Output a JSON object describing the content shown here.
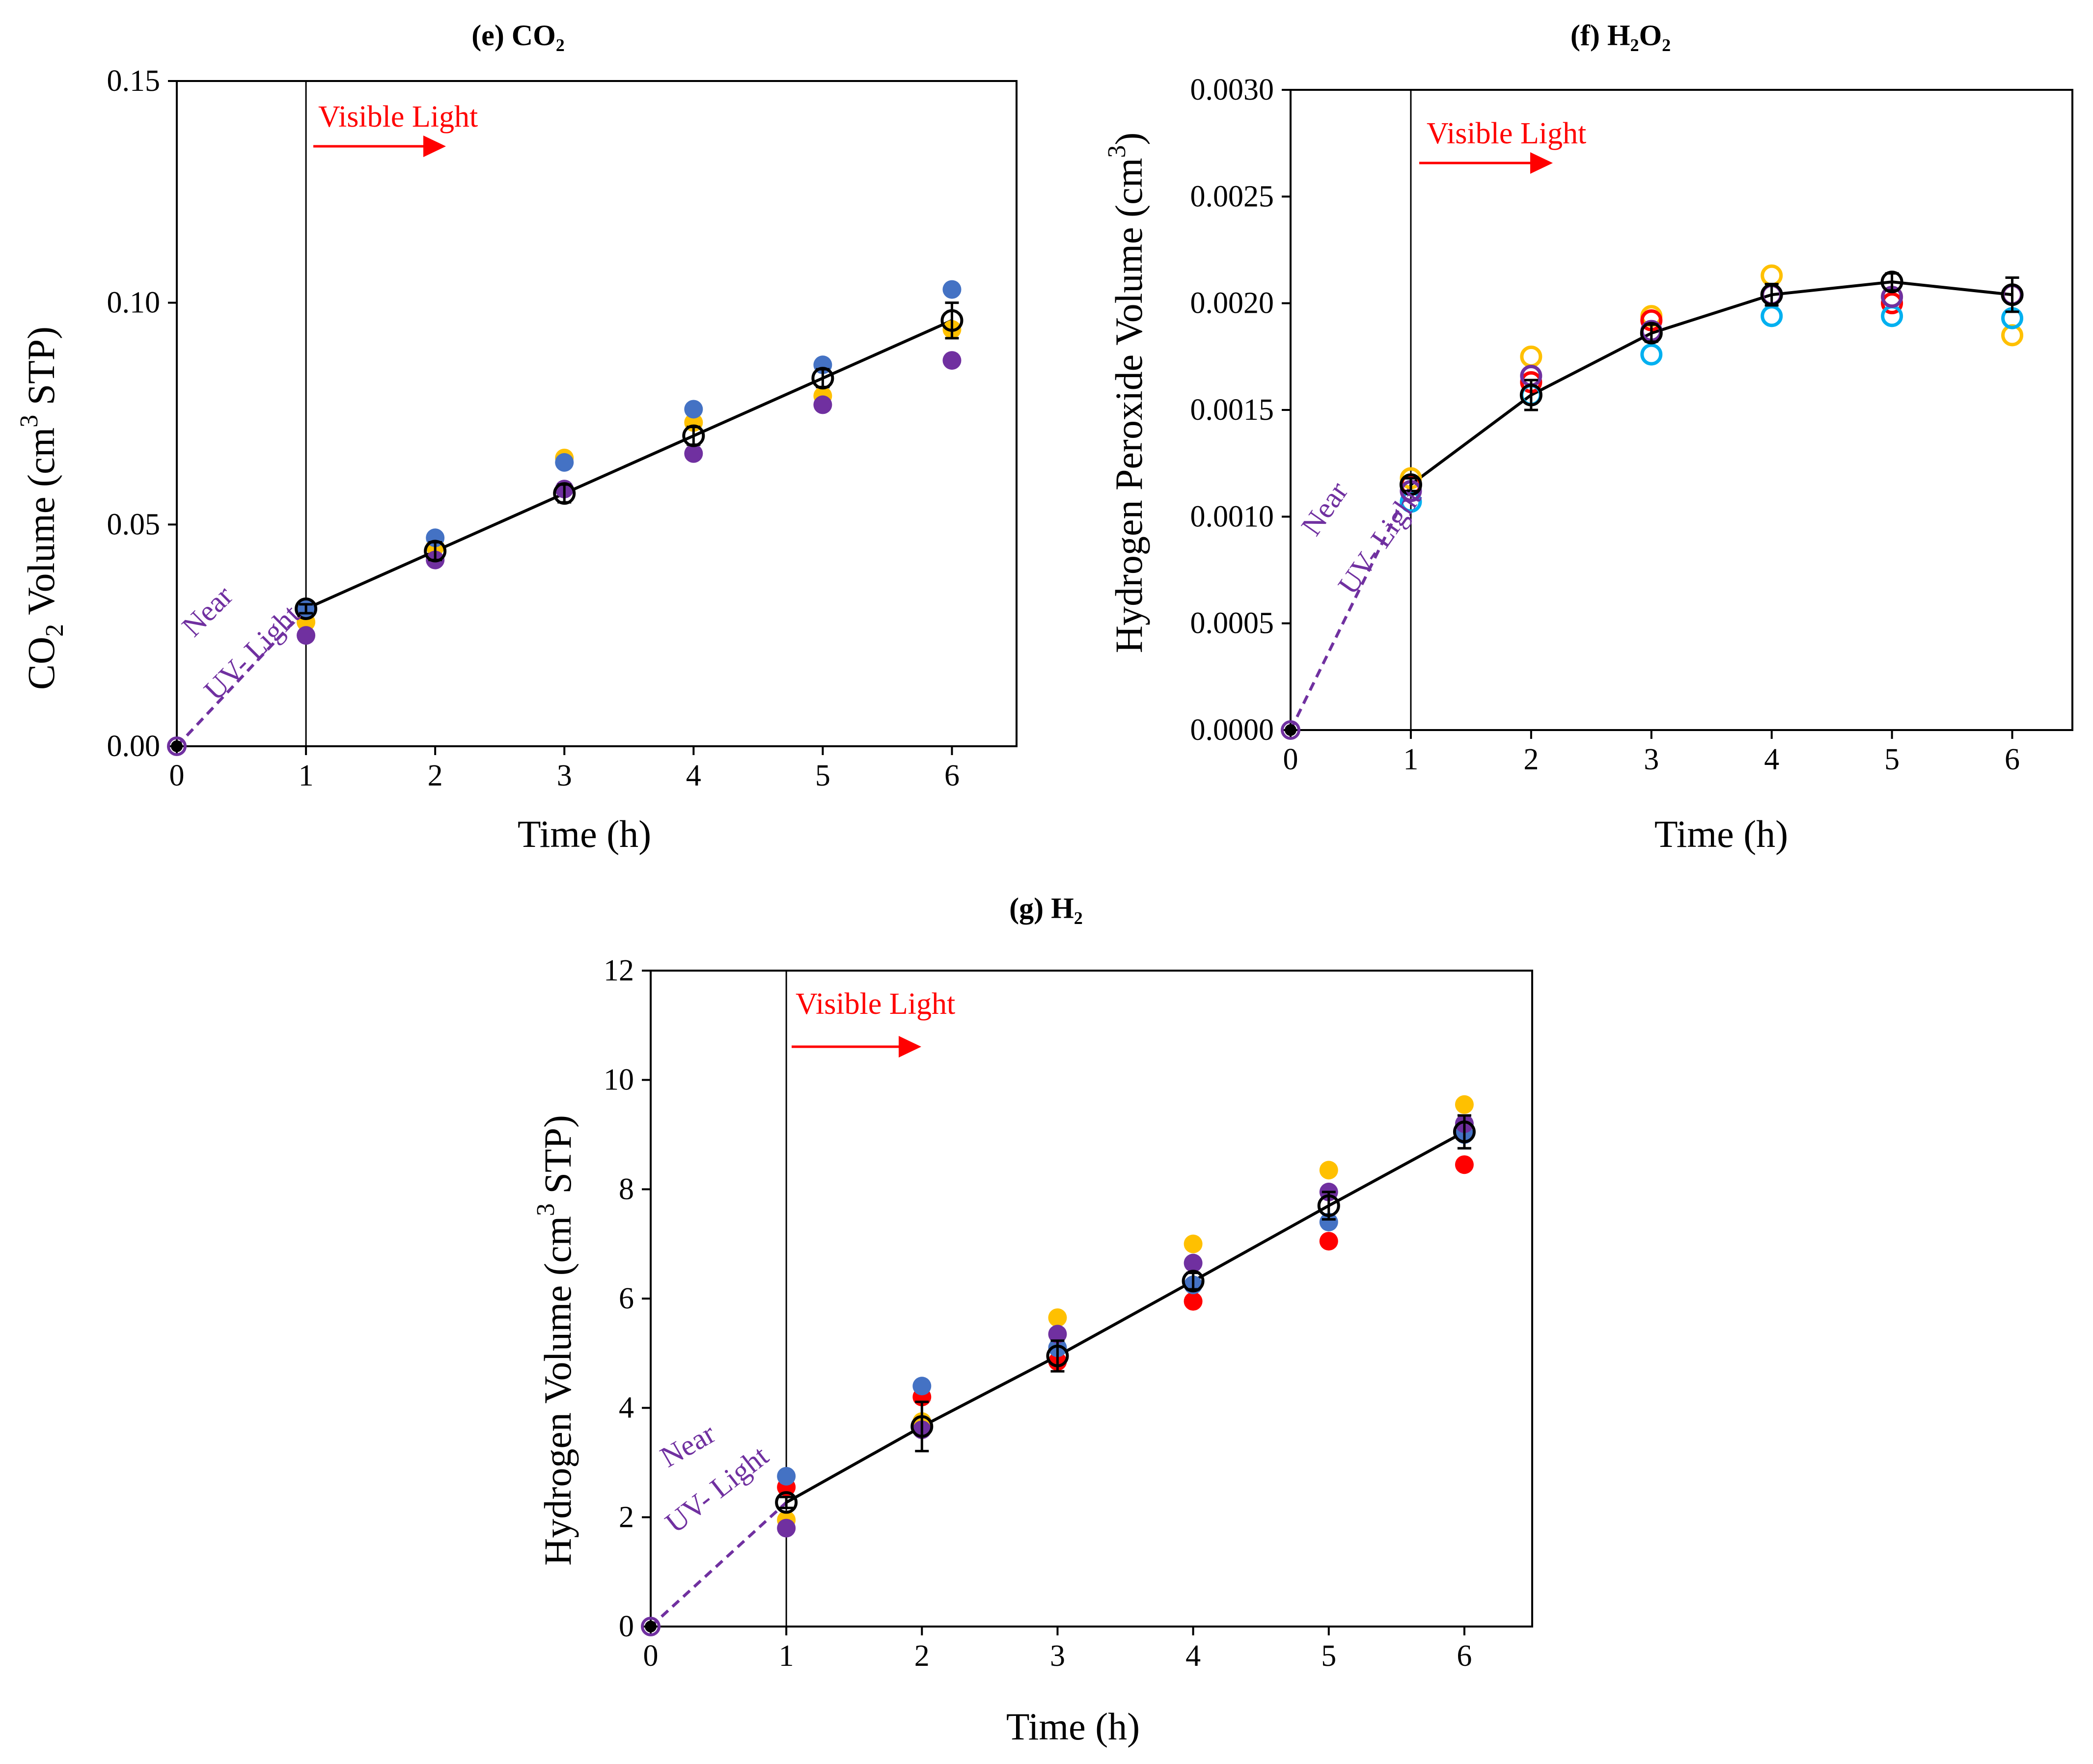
{
  "colors": {
    "black": "#000000",
    "red": "#ff0000",
    "yellow": "#ffc000",
    "blue": "#4472c4",
    "cyan": "#00b0f0",
    "purple": "#7030a0"
  },
  "annotations": {
    "visible_light": "Visible Light",
    "near": "Near",
    "uv_light": "UV- Light"
  },
  "chart_data": [
    {
      "id": "e",
      "type": "scatter",
      "title_prefix": "(e) ",
      "title": "CO₂",
      "xlabel": "Time (h)",
      "ylabel_parts": [
        "CO",
        "2",
        " Volume (cm",
        "3",
        " STP)"
      ],
      "xlim": [
        0,
        6.5
      ],
      "ylim": [
        0,
        0.15
      ],
      "xticks": [
        0,
        1,
        2,
        3,
        4,
        5,
        6
      ],
      "yticks": [
        0,
        0.05,
        0.1,
        0.15
      ],
      "ytick_labels": [
        "0.00",
        "0.05",
        "0.10",
        "0.15"
      ],
      "marker_style": "filled",
      "visible_light_at": 1,
      "mean": {
        "x": [
          0,
          1,
          2,
          3,
          4,
          5,
          6
        ],
        "y": [
          0,
          0.031,
          0.044,
          0.057,
          0.07,
          0.083,
          0.096
        ],
        "err": [
          0,
          0.001,
          0.002,
          0.002,
          0.002,
          0.002,
          0.004
        ]
      },
      "series": [
        {
          "name": "yellow",
          "color": "#ffc000",
          "x": [
            1,
            2,
            3,
            4,
            5,
            6
          ],
          "y": [
            0.028,
            0.045,
            0.065,
            0.073,
            0.079,
            0.094
          ]
        },
        {
          "name": "blue",
          "color": "#4472c4",
          "x": [
            1,
            2,
            3,
            4,
            5,
            6
          ],
          "y": [
            0.031,
            0.047,
            0.064,
            0.076,
            0.086,
            0.103
          ]
        },
        {
          "name": "purple",
          "color": "#7030a0",
          "x": [
            1,
            2,
            3,
            4,
            5,
            6
          ],
          "y": [
            0.025,
            0.042,
            0.058,
            0.066,
            0.077,
            0.087
          ]
        }
      ]
    },
    {
      "id": "f",
      "type": "scatter",
      "title_prefix": "(f) ",
      "title": "H₂O₂",
      "xlabel": "Time (h)",
      "ylabel_parts": [
        "Hydrogen Peroxide Volume (cm",
        "3",
        ")"
      ],
      "xlim": [
        0,
        6.5
      ],
      "ylim": [
        0,
        0.003
      ],
      "xticks": [
        0,
        1,
        2,
        3,
        4,
        5,
        6
      ],
      "yticks": [
        0,
        0.0005,
        0.001,
        0.0015,
        0.002,
        0.0025,
        0.003
      ],
      "ytick_labels": [
        "0.0000",
        "0.0005",
        "0.0010",
        "0.0015",
        "0.0020",
        "0.0025",
        "0.0030"
      ],
      "marker_style": "open",
      "visible_light_at": 1,
      "mean": {
        "x": [
          0,
          1,
          2,
          3,
          4,
          5,
          6
        ],
        "y": [
          0,
          0.00115,
          0.00157,
          0.00186,
          0.00204,
          0.0021,
          0.00204
        ],
        "err": [
          0,
          3e-05,
          7e-05,
          4e-05,
          5e-05,
          4e-05,
          8e-05
        ]
      },
      "series": [
        {
          "name": "yellow",
          "color": "#ffc000",
          "x": [
            1,
            2,
            3,
            4,
            5,
            6
          ],
          "y": [
            0.00118,
            0.00175,
            0.00194,
            0.00213,
            0.00203,
            0.00185
          ]
        },
        {
          "name": "red",
          "color": "#ff0000",
          "x": [
            1,
            2,
            3,
            4,
            5,
            6
          ],
          "y": [
            0.00115,
            0.00163,
            0.00192,
            0.00204,
            0.002,
            0.00204
          ]
        },
        {
          "name": "cyan",
          "color": "#00b0f0",
          "x": [
            1,
            2,
            3,
            4,
            5,
            6
          ],
          "y": [
            0.00107,
            0.00157,
            0.00176,
            0.00194,
            0.00194,
            0.00193
          ]
        },
        {
          "name": "purple",
          "color": "#7030a0",
          "x": [
            1,
            2,
            3,
            4,
            5,
            6
          ],
          "y": [
            0.00112,
            0.00166,
            0.00187,
            0.00204,
            0.00203,
            0.00204
          ]
        }
      ]
    },
    {
      "id": "g",
      "type": "scatter",
      "title_prefix": "(g) ",
      "title": "H₂",
      "xlabel": "Time (h)",
      "ylabel_parts": [
        "Hydrogen Volume (cm",
        "3",
        " STP)"
      ],
      "xlim": [
        0,
        6.5
      ],
      "ylim": [
        0,
        12
      ],
      "xticks": [
        0,
        1,
        2,
        3,
        4,
        5,
        6
      ],
      "yticks": [
        0,
        2,
        4,
        6,
        8,
        10,
        12
      ],
      "ytick_labels": [
        "0",
        "2",
        "4",
        "6",
        "8",
        "10",
        "12"
      ],
      "marker_style": "filled",
      "visible_light_at": 1,
      "mean": {
        "x": [
          0,
          1,
          2,
          3,
          4,
          5,
          6
        ],
        "y": [
          0,
          2.27,
          3.66,
          4.95,
          6.32,
          7.7,
          9.05
        ],
        "err": [
          0,
          0.1,
          0.45,
          0.28,
          0.15,
          0.25,
          0.3
        ]
      },
      "series": [
        {
          "name": "red",
          "color": "#ff0000",
          "x": [
            1,
            2,
            3,
            4,
            5,
            6
          ],
          "y": [
            2.55,
            4.2,
            4.85,
            5.95,
            7.05,
            8.45
          ]
        },
        {
          "name": "yellow",
          "color": "#ffc000",
          "x": [
            1,
            2,
            3,
            4,
            5,
            6
          ],
          "y": [
            1.95,
            3.75,
            5.65,
            7.0,
            8.35,
            9.55
          ]
        },
        {
          "name": "blue",
          "color": "#4472c4",
          "x": [
            1,
            2,
            3,
            4,
            5,
            6
          ],
          "y": [
            2.75,
            4.4,
            5.1,
            6.25,
            7.4,
            9.0
          ]
        },
        {
          "name": "purple",
          "color": "#7030a0",
          "x": [
            1,
            2,
            3,
            4,
            5,
            6
          ],
          "y": [
            1.8,
            3.6,
            5.35,
            6.65,
            7.95,
            9.2
          ]
        }
      ]
    }
  ]
}
